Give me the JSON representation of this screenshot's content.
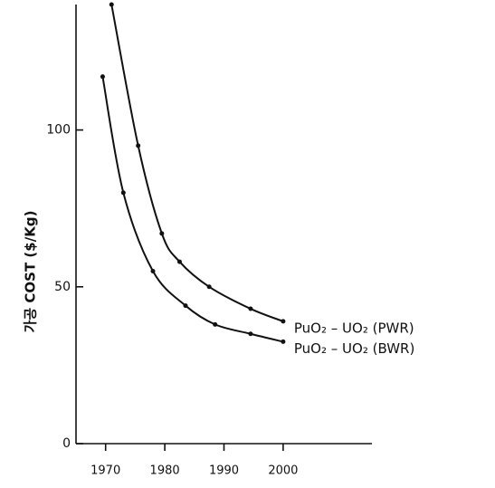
{
  "chart_data": {
    "type": "line",
    "y_label": "가공 COST ($/Kg)",
    "xlim": [
      1965,
      2015
    ],
    "xticks": [
      1970,
      1980,
      1990,
      2000
    ],
    "ylim": [
      0,
      140
    ],
    "yticks": [
      0,
      50,
      100
    ],
    "series": [
      {
        "name": "PuO₂ – UO₂ (PWR)",
        "color": "#111111",
        "x": [
          1971,
          1975.5,
          1979.5,
          1982.5,
          1987.5,
          1994.5,
          2000
        ],
        "values": [
          140,
          95,
          67,
          58,
          50,
          43,
          39
        ]
      },
      {
        "name": "PuO₂ – UO₂ (BWR)",
        "color": "#111111",
        "x": [
          1969.5,
          1973,
          1978,
          1983.5,
          1988.5,
          1994.5,
          2000
        ],
        "values": [
          117,
          80,
          55,
          44,
          38,
          35,
          32.5
        ]
      }
    ]
  }
}
